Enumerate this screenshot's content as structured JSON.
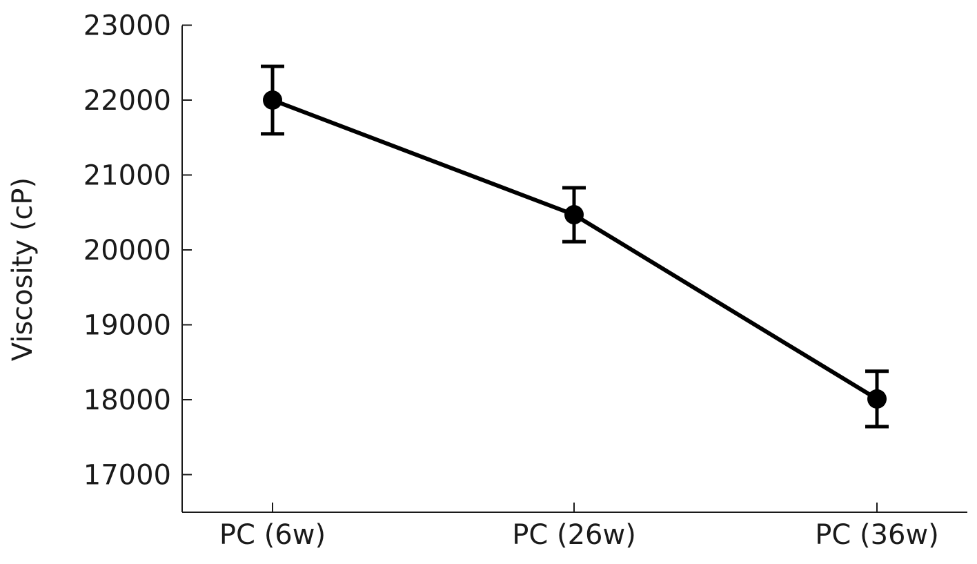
{
  "chart_data": {
    "type": "line",
    "title": "",
    "xlabel": "",
    "ylabel": "Viscosity (cP)",
    "categories": [
      "PC (6w)",
      "PC (26w)",
      "PC (36w)"
    ],
    "series": [
      {
        "values": [
          22000,
          20470,
          18010
        ],
        "error": [
          450,
          360,
          370
        ],
        "color": "#000000"
      }
    ],
    "ylim": [
      16500,
      23000
    ],
    "yticks": [
      17000,
      18000,
      19000,
      20000,
      21000,
      22000,
      23000
    ],
    "ytick_labels": [
      "17000",
      "18000",
      "19000",
      "20000",
      "21000",
      "22000",
      "23000"
    ],
    "grid": false,
    "legend": "none"
  }
}
